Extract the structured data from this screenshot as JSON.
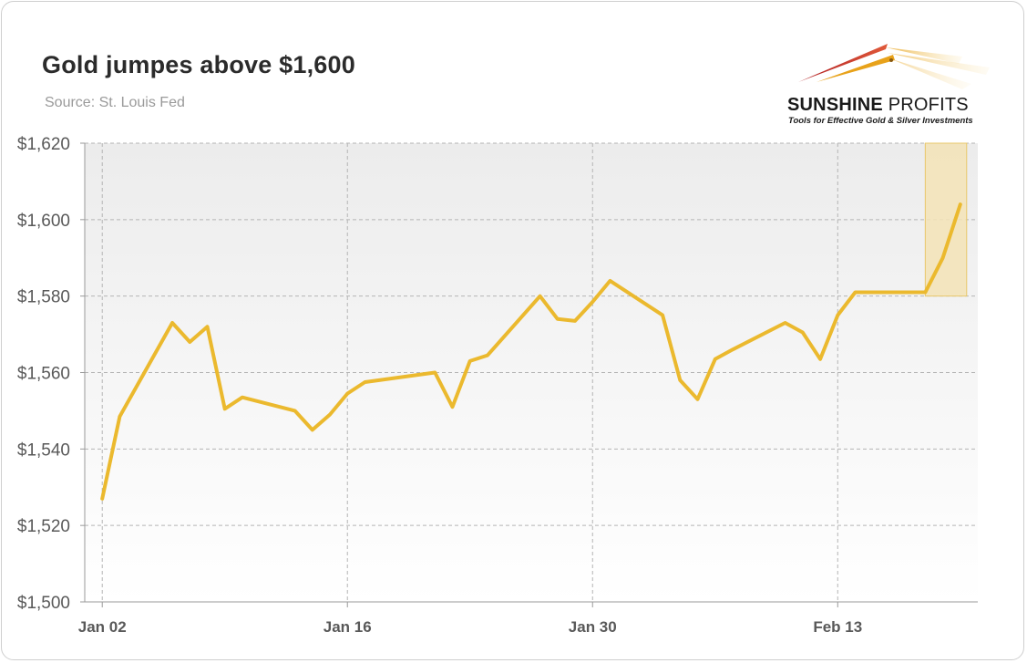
{
  "header": {
    "title": "Gold jumpes above $1,600",
    "subtitle": "Source: St. Louis Fed"
  },
  "logo": {
    "name_bold": "SUNSHINE",
    "name_light": " PROFITS",
    "tagline": "Tools for Effective Gold & Silver Investments"
  },
  "colors": {
    "line": "#EBB92E",
    "highlight_fill": "#F3E3B6",
    "highlight_border": "#E8C76A",
    "grid": "#b4b4b4"
  },
  "chart_data": {
    "type": "line",
    "title": "Gold jumpes above $1,600",
    "subtitle": "Source: St. Louis Fed",
    "xlabel": "",
    "ylabel": "",
    "ylim": [
      1500,
      1620
    ],
    "y_ticks": [
      1500,
      1520,
      1540,
      1560,
      1580,
      1600,
      1620
    ],
    "y_tick_labels": [
      "$1,500",
      "$1,520",
      "$1,540",
      "$1,560",
      "$1,580",
      "$1,600",
      "$1,620"
    ],
    "x_range": [
      "2020-01-01",
      "2020-02-21"
    ],
    "x_ticks": [
      "2020-01-02",
      "2020-01-16",
      "2020-01-30",
      "2020-02-13"
    ],
    "x_tick_labels": [
      "Jan 02",
      "Jan 16",
      "Jan 30",
      "Feb 13"
    ],
    "grid": true,
    "legend": "none",
    "highlight": {
      "x_start": "2020-02-18",
      "x_end": "2020-02-20",
      "y_start": 1580,
      "y_end": 1620
    },
    "series": [
      {
        "x": [
          "2020-01-02",
          "2020-01-03",
          "2020-01-06",
          "2020-01-07",
          "2020-01-08",
          "2020-01-09",
          "2020-01-10",
          "2020-01-13",
          "2020-01-14",
          "2020-01-15",
          "2020-01-16",
          "2020-01-17",
          "2020-01-21",
          "2020-01-22",
          "2020-01-23",
          "2020-01-24",
          "2020-01-27",
          "2020-01-28",
          "2020-01-29",
          "2020-01-30",
          "2020-01-31",
          "2020-02-03",
          "2020-02-04",
          "2020-02-05",
          "2020-02-06",
          "2020-02-07",
          "2020-02-10",
          "2020-02-11",
          "2020-02-12",
          "2020-02-13",
          "2020-02-14",
          "2020-02-18",
          "2020-02-19",
          "2020-02-20"
        ],
        "y": [
          1527,
          1548.5,
          1573,
          1568,
          1572,
          1550.5,
          1553.5,
          1550,
          1545,
          1549,
          1554.5,
          1557.5,
          1560,
          1551,
          1563,
          1564.5,
          1580,
          1574,
          1573.5,
          1578.5,
          1584,
          1575,
          1558,
          1553,
          1563.5,
          1566,
          1573,
          1570.5,
          1563.5,
          1575,
          1581,
          1581,
          1590,
          1604
        ]
      }
    ]
  }
}
